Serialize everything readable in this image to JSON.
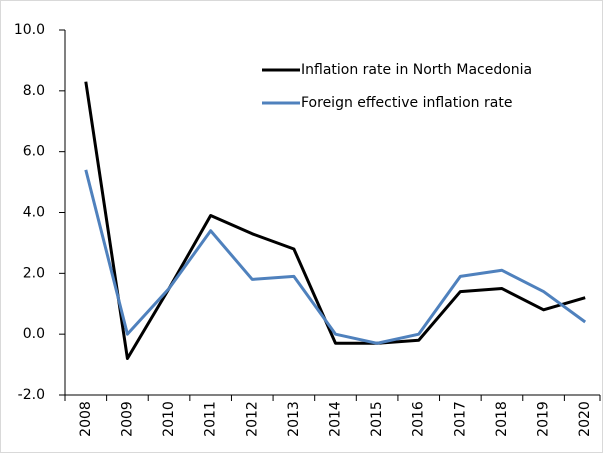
{
  "chart_data": {
    "type": "line",
    "categories": [
      "2008",
      "2009",
      "2010",
      "2011",
      "2012",
      "2013",
      "2014",
      "2015",
      "2016",
      "2017",
      "2018",
      "2019",
      "2020"
    ],
    "series": [
      {
        "name": "Inflation rate in North Macedonia",
        "color": "#000000",
        "values": [
          8.3,
          -0.8,
          1.5,
          3.9,
          3.3,
          2.8,
          -0.3,
          -0.3,
          -0.2,
          1.4,
          1.5,
          0.8,
          1.2
        ]
      },
      {
        "name": "Foreign effective inflation rate",
        "color": "#4f81bd",
        "values": [
          5.4,
          0.0,
          1.5,
          3.4,
          1.8,
          1.9,
          0.0,
          -0.3,
          0.0,
          1.9,
          2.1,
          1.4,
          0.4
        ]
      }
    ],
    "ylim": [
      -2,
      10
    ],
    "yticks": [
      {
        "value": -2,
        "label": "-2.0"
      },
      {
        "value": 0,
        "label": "0.0"
      },
      {
        "value": 2,
        "label": "2.0"
      },
      {
        "value": 4,
        "label": "4.0"
      },
      {
        "value": 6,
        "label": "6.0"
      },
      {
        "value": 8,
        "label": "8.0"
      },
      {
        "value": 10,
        "label": "10.0"
      }
    ],
    "legend": "upper right"
  }
}
